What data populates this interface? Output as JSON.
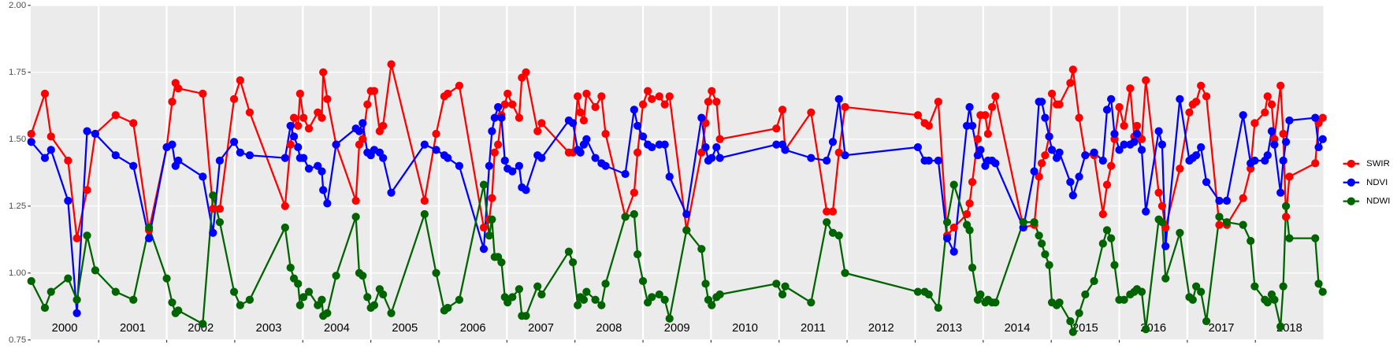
{
  "chart_data": {
    "type": "line",
    "x": [
      2000.01,
      2000.21,
      2000.3,
      2000.55,
      2000.68,
      2000.83,
      2000.95,
      2001.25,
      2001.51,
      2001.74,
      2002.0,
      2002.08,
      2002.13,
      2002.17,
      2002.53,
      2002.68,
      2002.78,
      2002.99,
      2003.08,
      2003.22,
      2003.74,
      2003.82,
      2003.87,
      2003.93,
      2003.96,
      2004.01,
      2004.09,
      2004.22,
      2004.28,
      2004.3,
      2004.36,
      2004.49,
      2004.78,
      2004.83,
      2004.88,
      2004.95,
      2005.0,
      2005.05,
      2005.13,
      2005.18,
      2005.3,
      2005.79,
      2005.96,
      2006.08,
      2006.13,
      2006.3,
      2006.66,
      2006.74,
      2006.78,
      2006.82,
      2006.87,
      2006.92,
      2006.97,
      2007.01,
      2007.08,
      2007.18,
      2007.22,
      2007.28,
      2007.45,
      2007.51,
      2007.91,
      2007.97,
      2008.04,
      2008.08,
      2008.13,
      2008.17,
      2008.3,
      2008.39,
      2008.45,
      2008.74,
      2008.87,
      2008.92,
      2009.0,
      2009.07,
      2009.13,
      2009.24,
      2009.32,
      2009.39,
      2009.64,
      2009.86,
      2009.92,
      2009.96,
      2010.01,
      2010.08,
      2010.13,
      2010.96,
      2011.05,
      2011.09,
      2011.47,
      2011.7,
      2011.79,
      2011.88,
      2011.97,
      2013.04,
      2013.14,
      2013.2,
      2013.34,
      2013.47,
      2013.57,
      2013.76,
      2013.8,
      2013.84,
      2013.92,
      2013.96,
      2014.03,
      2014.07,
      2014.13,
      2014.18,
      2014.59,
      2014.75,
      2014.82,
      2014.86,
      2014.91,
      2014.97,
      2015.01,
      2015.08,
      2015.12,
      2015.28,
      2015.32,
      2015.41,
      2015.5,
      2015.63,
      2015.76,
      2015.82,
      2015.88,
      2015.93,
      2016.0,
      2016.07,
      2016.16,
      2016.22,
      2016.26,
      2016.33,
      2016.39,
      2016.58,
      2016.63,
      2016.68,
      2016.89,
      2017.03,
      2017.08,
      2017.13,
      2017.2,
      2017.28,
      2017.47,
      2017.58,
      2017.82,
      2017.93,
      2017.99,
      2018.14,
      2018.18,
      2018.24,
      2018.28,
      2018.37,
      2018.41,
      2018.45,
      2018.5,
      2018.88,
      2018.93,
      2018.99
    ],
    "series": [
      {
        "name": "SWIR",
        "color": "#ff0000",
        "values": [
          1.52,
          1.67,
          1.51,
          1.42,
          1.13,
          1.31,
          1.52,
          1.59,
          1.56,
          1.16,
          1.47,
          1.64,
          1.71,
          1.69,
          1.67,
          1.24,
          1.24,
          1.65,
          1.72,
          1.6,
          1.25,
          1.48,
          1.58,
          1.55,
          1.67,
          1.58,
          1.54,
          1.6,
          1.58,
          1.75,
          1.65,
          1.48,
          1.27,
          1.48,
          1.5,
          1.63,
          1.68,
          1.68,
          1.53,
          1.55,
          1.78,
          1.27,
          1.52,
          1.66,
          1.67,
          1.7,
          1.17,
          1.2,
          1.28,
          1.45,
          1.48,
          1.59,
          1.63,
          1.67,
          1.63,
          1.58,
          1.73,
          1.75,
          1.53,
          1.56,
          1.45,
          1.45,
          1.66,
          1.6,
          1.57,
          1.67,
          1.62,
          1.66,
          1.52,
          1.21,
          1.3,
          1.45,
          1.63,
          1.68,
          1.65,
          1.66,
          1.63,
          1.66,
          1.16,
          1.45,
          1.56,
          1.64,
          1.68,
          1.64,
          1.5,
          1.54,
          1.61,
          1.46,
          1.6,
          1.23,
          1.23,
          1.45,
          1.62,
          1.59,
          1.56,
          1.55,
          1.64,
          1.14,
          1.17,
          1.22,
          1.26,
          1.34,
          1.5,
          1.59,
          1.59,
          1.52,
          1.62,
          1.66,
          1.17,
          1.18,
          1.36,
          1.41,
          1.44,
          1.51,
          1.67,
          1.63,
          1.63,
          1.71,
          1.76,
          1.58,
          1.44,
          1.44,
          1.22,
          1.33,
          1.4,
          1.5,
          1.62,
          1.55,
          1.69,
          1.51,
          1.55,
          1.5,
          1.72,
          1.3,
          1.25,
          1.17,
          1.39,
          1.6,
          1.63,
          1.64,
          1.7,
          1.66,
          1.18,
          1.18,
          1.28,
          1.39,
          1.56,
          1.6,
          1.66,
          1.63,
          1.5,
          1.7,
          1.52,
          1.21,
          1.36,
          1.41,
          1.56,
          1.58
        ]
      },
      {
        "name": "NDVI",
        "color": "#0000ff",
        "values": [
          1.49,
          1.43,
          1.46,
          1.27,
          0.85,
          1.53,
          1.52,
          1.44,
          1.4,
          1.13,
          1.47,
          1.48,
          1.4,
          1.42,
          1.36,
          1.15,
          1.42,
          1.49,
          1.45,
          1.44,
          1.43,
          1.55,
          1.51,
          1.47,
          1.43,
          1.43,
          1.39,
          1.4,
          1.38,
          1.31,
          1.26,
          1.48,
          1.54,
          1.53,
          1.56,
          1.45,
          1.44,
          1.46,
          1.45,
          1.43,
          1.3,
          1.48,
          1.46,
          1.44,
          1.43,
          1.4,
          1.09,
          1.4,
          1.53,
          1.58,
          1.62,
          1.58,
          1.42,
          1.39,
          1.38,
          1.4,
          1.32,
          1.31,
          1.44,
          1.43,
          1.57,
          1.56,
          1.46,
          1.45,
          1.48,
          1.5,
          1.43,
          1.41,
          1.4,
          1.37,
          1.61,
          1.55,
          1.51,
          1.48,
          1.47,
          1.48,
          1.48,
          1.36,
          1.22,
          1.58,
          1.47,
          1.42,
          1.43,
          1.47,
          1.43,
          1.48,
          1.48,
          1.46,
          1.43,
          1.42,
          1.49,
          1.65,
          1.44,
          1.47,
          1.42,
          1.42,
          1.42,
          1.13,
          1.08,
          1.55,
          1.62,
          1.55,
          1.44,
          1.46,
          1.4,
          1.42,
          1.42,
          1.41,
          1.17,
          1.38,
          1.64,
          1.64,
          1.58,
          1.51,
          1.46,
          1.43,
          1.45,
          1.34,
          1.29,
          1.36,
          1.44,
          1.45,
          1.42,
          1.61,
          1.65,
          1.52,
          1.46,
          1.48,
          1.48,
          1.49,
          1.52,
          1.46,
          1.23,
          1.53,
          1.48,
          1.1,
          1.65,
          1.42,
          1.43,
          1.44,
          1.47,
          1.34,
          1.27,
          1.27,
          1.59,
          1.41,
          1.42,
          1.42,
          1.44,
          1.53,
          1.48,
          1.3,
          1.42,
          1.49,
          1.57,
          1.58,
          1.47,
          1.5
        ]
      },
      {
        "name": "NDWI",
        "color": "#006400",
        "values": [
          0.97,
          0.87,
          0.93,
          0.98,
          0.9,
          1.14,
          1.01,
          0.93,
          0.9,
          1.17,
          0.98,
          0.89,
          0.85,
          0.86,
          0.81,
          1.29,
          1.19,
          0.93,
          0.88,
          0.9,
          1.17,
          1.02,
          0.98,
          0.96,
          0.88,
          0.91,
          0.93,
          0.88,
          0.9,
          0.84,
          0.85,
          0.99,
          1.21,
          1.0,
          0.99,
          0.91,
          0.87,
          0.88,
          0.94,
          0.92,
          0.85,
          1.22,
          1.0,
          0.86,
          0.87,
          0.9,
          1.33,
          1.14,
          1.2,
          1.06,
          1.06,
          1.04,
          0.91,
          0.89,
          0.91,
          0.94,
          0.84,
          0.84,
          0.95,
          0.92,
          1.08,
          1.04,
          0.88,
          0.91,
          0.9,
          0.93,
          0.9,
          0.88,
          0.96,
          1.21,
          1.22,
          1.07,
          0.97,
          0.89,
          0.91,
          0.92,
          0.9,
          0.83,
          1.16,
          1.09,
          0.96,
          0.9,
          0.88,
          0.91,
          0.92,
          0.96,
          0.92,
          0.95,
          0.89,
          1.19,
          1.15,
          1.14,
          1.0,
          0.93,
          0.93,
          0.92,
          0.87,
          1.19,
          1.33,
          1.18,
          1.16,
          1.02,
          0.9,
          0.92,
          0.89,
          0.9,
          0.89,
          0.89,
          1.19,
          1.19,
          1.14,
          1.11,
          1.07,
          1.03,
          0.89,
          0.88,
          0.89,
          0.82,
          0.78,
          0.85,
          0.92,
          0.97,
          1.11,
          1.16,
          1.13,
          1.03,
          0.9,
          0.9,
          0.92,
          0.93,
          0.94,
          0.93,
          0.79,
          1.2,
          1.19,
          0.98,
          1.15,
          0.91,
          0.9,
          0.95,
          0.93,
          0.82,
          1.21,
          1.19,
          1.18,
          1.12,
          0.95,
          0.9,
          0.89,
          0.92,
          0.9,
          0.8,
          0.95,
          1.25,
          1.13,
          1.13,
          0.96,
          0.93
        ]
      }
    ],
    "xlim": [
      2000,
      2019
    ],
    "xticks": [
      2001,
      2002,
      2003,
      2004,
      2005,
      2006,
      2007,
      2008,
      2009,
      2010,
      2011,
      2012,
      2013,
      2014,
      2015,
      2016,
      2017,
      2018
    ],
    "year_labels": [
      2000,
      2001,
      2002,
      2003,
      2004,
      2005,
      2006,
      2007,
      2008,
      2009,
      2010,
      2011,
      2012,
      2013,
      2014,
      2015,
      2016,
      2017,
      2018
    ],
    "ylim": [
      0.75,
      2.0
    ],
    "yticks": [
      0.75,
      {
        "value": 1,
        "label": "1.00"
      },
      1.25,
      {
        "value": 1.5,
        "label": "1.50"
      },
      1.75,
      {
        "value": 2,
        "label": "2.00"
      }
    ],
    "grid": true,
    "legend": "right"
  }
}
